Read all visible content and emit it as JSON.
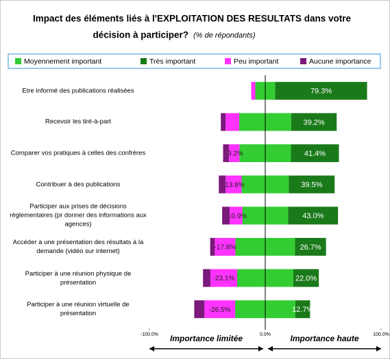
{
  "chart_data": {
    "type": "diverging_bar",
    "title": "Impact des éléments liés à l'EXPLOITATION DES RESULTATS dans votre",
    "title_line2": "décision à participer?",
    "subtitle": "(% de répondants)",
    "categories": [
      "Etre informé des publications réalisées",
      "Recevoir les tiré-à-part",
      "Comparer vos pratiques à celles des confrères",
      "Contribuer à des publications",
      "Participer aux prises de décisions réglementaires (pr donner des informations aux agences)",
      "Accéder à une présentation des résultats à la demande (vidéo sur internet)",
      "Participer à une réunion physique de présentation",
      "Participer à une réunion virtuelle de présentation"
    ],
    "series": [
      {
        "name": "Moyennement important",
        "color": "#33cc33",
        "role": "neutral",
        "values": [
          17.2,
          44.9,
          44.4,
          40.8,
          39.6,
          51.5,
          48.5,
          52.0
        ]
      },
      {
        "name": "Très important",
        "color": "#1a7a1a",
        "role": "positive",
        "values": [
          79.3,
          39.2,
          41.4,
          39.5,
          43.0,
          26.7,
          22.0,
          12.7
        ],
        "value_labels": [
          "79.3%",
          "39.2%",
          "41.4%",
          "39.5%",
          "43.0%",
          "26.7%",
          "22.0%",
          "12.7%"
        ]
      },
      {
        "name": "Peu important",
        "color": "#ff33ff",
        "role": "negative",
        "values": [
          -3.5,
          -11.8,
          -9.2,
          -13.8,
          -10.9,
          -17.8,
          -23.1,
          -26.5
        ],
        "value_labels": [
          null,
          null,
          "-9.2%",
          "-13.8%",
          "-10.9%",
          "-17.8%",
          "-23.1%",
          "-26.5%"
        ]
      },
      {
        "name": "Aucune importance",
        "color": "#7a1a7a",
        "role": "negative",
        "values": [
          0,
          -4.1,
          -5.0,
          -5.9,
          -6.5,
          -4.0,
          -6.4,
          -8.8
        ]
      }
    ],
    "xlim": [
      -100,
      100
    ],
    "xticks": [
      {
        "value": -100,
        "label": "-100.0%"
      },
      {
        "value": 0,
        "label": "0.0%"
      },
      {
        "value": 100,
        "label": "100.0%"
      }
    ],
    "annotations": [
      "Importance limitée",
      "Importance haute"
    ]
  }
}
